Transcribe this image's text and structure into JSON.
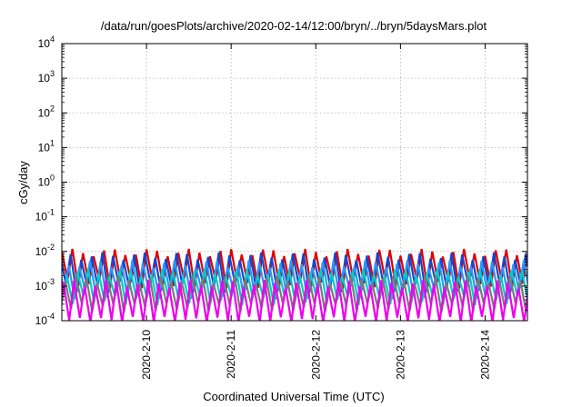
{
  "chart_data": {
    "type": "line",
    "title": "/data/run/goesPlots/archive/2020-02-14/12:00/bryn/../bryn/5daysMars.plot",
    "xlabel": "Coordinated Universal Time (UTC)",
    "ylabel": "cGy/day",
    "yscale": "log",
    "ylim": [
      0.0001,
      10000
    ],
    "xlim": [
      "2020-02-09T00:00",
      "2020-02-14T12:00"
    ],
    "x_ticks": [
      "2020-2-10",
      "2020-2-11",
      "2020-2-12",
      "2020-2-13",
      "2020-2-14"
    ],
    "x_tick_dates": [
      "2020-02-10",
      "2020-02-11",
      "2020-02-12",
      "2020-02-13",
      "2020-02-14"
    ],
    "y_ticks": [
      {
        "base": "10",
        "exp": "-4"
      },
      {
        "base": "10",
        "exp": "-3"
      },
      {
        "base": "10",
        "exp": "-2"
      },
      {
        "base": "10",
        "exp": "-1"
      },
      {
        "base": "10",
        "exp": "0"
      },
      {
        "base": "10",
        "exp": "1"
      },
      {
        "base": "10",
        "exp": "2"
      },
      {
        "base": "10",
        "exp": "3"
      },
      {
        "base": "10",
        "exp": "4"
      }
    ],
    "grid": true,
    "legend": "none",
    "oscillation_period_hours": 3,
    "series": [
      {
        "color": "#e00000",
        "high": 0.0095,
        "low": 0.0012
      },
      {
        "color": "#1a44cc",
        "high": 0.0075,
        "low": 0.0009
      },
      {
        "color": "#2299ff",
        "high": 0.0045,
        "low": 0.0006
      },
      {
        "color": "#00cccc",
        "high": 0.0025,
        "low": 0.0004
      },
      {
        "color": "#7a7a7a",
        "high": 0.0016,
        "low": 0.00025
      },
      {
        "color": "#ee00ee",
        "high": 0.0012,
        "low": 0.0001
      }
    ]
  }
}
